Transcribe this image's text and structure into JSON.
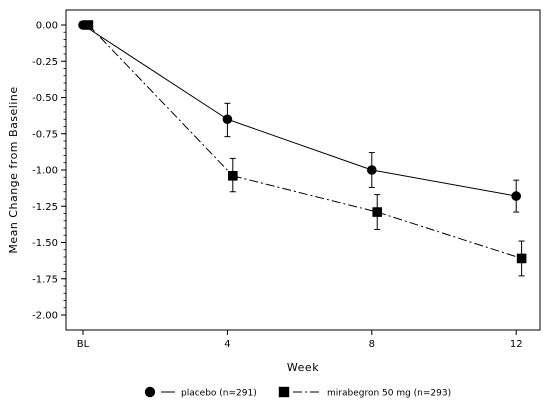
{
  "chart_data": {
    "type": "line",
    "title": "",
    "xlabel": "Week",
    "ylabel": "Mean Change from Baseline",
    "categories": [
      "BL",
      "4",
      "8",
      "12"
    ],
    "x": [
      0,
      4,
      8,
      12
    ],
    "ylim": [
      -2.0,
      0.0
    ],
    "yticks": [
      "0.00",
      "-0.25",
      "-0.50",
      "-0.75",
      "-1.00",
      "-1.25",
      "-1.50",
      "-1.75",
      "-2.00"
    ],
    "ytick_values": [
      0,
      -0.25,
      -0.5,
      -0.75,
      -1.0,
      -1.25,
      -1.5,
      -1.75,
      -2.0
    ],
    "grid": false,
    "legend_position": "bottom",
    "series": [
      {
        "name": "placebo (n=291)",
        "marker": "circle",
        "line_style": "solid",
        "x": [
          0,
          4,
          8,
          12
        ],
        "values": [
          0.0,
          -0.65,
          -1.0,
          -1.18
        ],
        "err_low": [
          0.0,
          -0.77,
          -1.12,
          -1.29
        ],
        "err_high": [
          0.0,
          -0.54,
          -0.88,
          -1.07
        ]
      },
      {
        "name": "mirabegron 50 mg (n=293)",
        "marker": "square",
        "line_style": "dashdot",
        "x": [
          0.15,
          4.15,
          8.15,
          12.15
        ],
        "values": [
          0.0,
          -1.04,
          -1.29,
          -1.61
        ],
        "err_low": [
          0.0,
          -1.15,
          -1.41,
          -1.73
        ],
        "err_high": [
          0.0,
          -0.92,
          -1.17,
          -1.49
        ]
      }
    ]
  }
}
